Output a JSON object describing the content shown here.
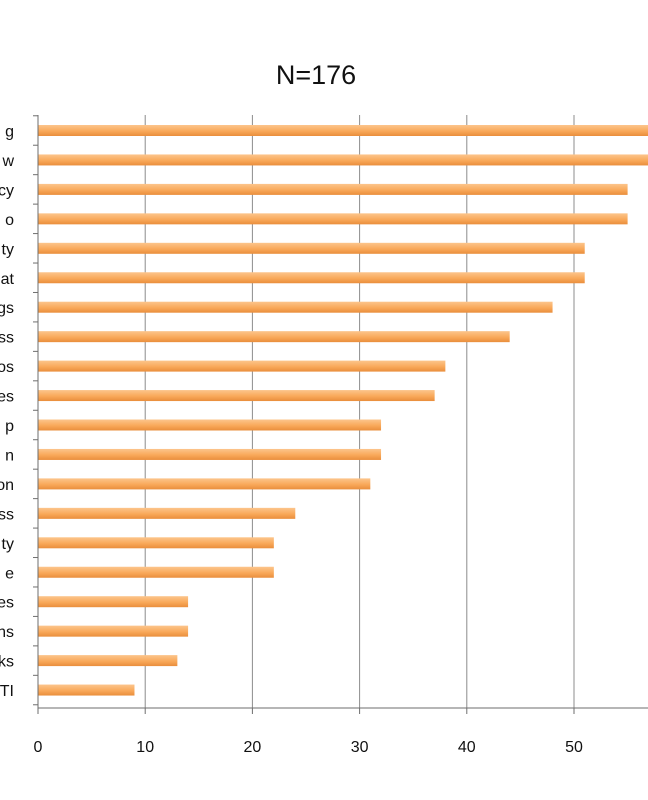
{
  "chart_data": {
    "type": "bar",
    "orientation": "horizontal",
    "title": "N=176",
    "xlabel": "",
    "ylabel": "",
    "categories": [
      "g",
      "w",
      "cy",
      "o",
      "ty",
      "at",
      "gs",
      "ss",
      "os",
      "es",
      "p",
      "n",
      "on",
      "ss",
      "ty",
      "e",
      "es",
      "ns",
      "ks",
      "TI"
    ],
    "values": [
      58,
      58,
      55,
      55,
      51,
      51,
      48,
      44,
      38,
      37,
      32,
      32,
      31,
      24,
      22,
      22,
      14,
      14,
      13,
      9
    ],
    "xlim": [
      0,
      60
    ],
    "xticks": [
      0,
      10,
      20,
      30,
      40,
      50
    ],
    "grid": true,
    "legend": "none",
    "bar_color": "#f9a95a",
    "bar_color_light": "#fcc58c",
    "bar_color_dark": "#e98e3c"
  }
}
